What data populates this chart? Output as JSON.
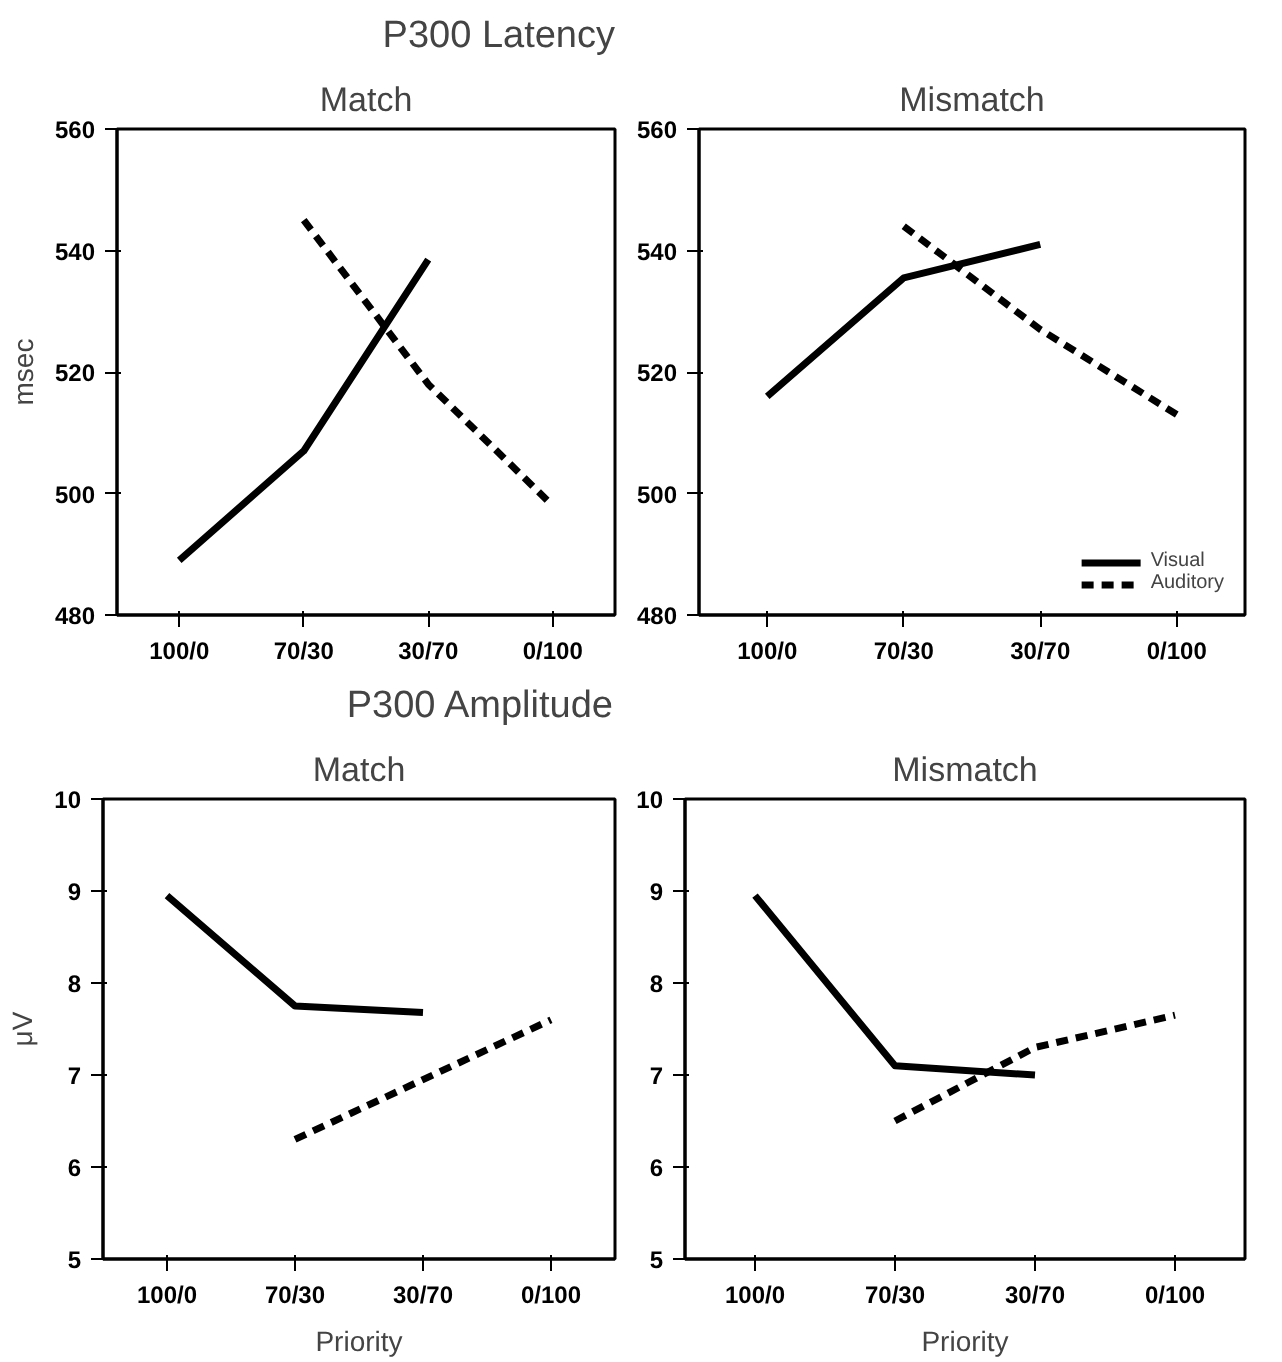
{
  "chart_data": [
    {
      "type": "line",
      "title": "P300 Latency",
      "subtitle": "Match",
      "ylabel": "msec",
      "categories": [
        "100/0",
        "70/30",
        "30/70",
        "0/100"
      ],
      "ylim": [
        480,
        560
      ],
      "yticks": [
        480,
        500,
        520,
        540,
        560
      ],
      "grid": false,
      "legend": false,
      "series": [
        {
          "color": "#000000",
          "line_style": "solid",
          "values": [
            489,
            507,
            538.5,
            null
          ]
        },
        {
          "color": "#000000",
          "line_style": "dashed",
          "values": [
            null,
            545,
            518,
            498
          ]
        }
      ]
    },
    {
      "type": "line",
      "subtitle": "Mismatch",
      "categories": [
        "100/0",
        "70/30",
        "30/70",
        "0/100"
      ],
      "ylim": [
        480,
        560
      ],
      "yticks": [
        480,
        500,
        520,
        540,
        560
      ],
      "grid": false,
      "legend": "bottom right",
      "series": [
        {
          "name": "Visual",
          "color": "#000000",
          "line_style": "solid",
          "values": [
            516,
            535.5,
            541,
            null
          ]
        },
        {
          "name": "Auditory",
          "color": "#000000",
          "line_style": "dashed",
          "values": [
            null,
            544,
            527,
            513
          ]
        }
      ]
    },
    {
      "type": "line",
      "title": "P300 Amplitude",
      "subtitle": "Match",
      "ylabel": "μV",
      "xlabel": "Priority",
      "categories": [
        "100/0",
        "70/30",
        "30/70",
        "0/100"
      ],
      "ylim": [
        5,
        10
      ],
      "yticks": [
        5,
        6,
        7,
        8,
        9,
        10
      ],
      "grid": false,
      "legend": false,
      "series": [
        {
          "color": "#000000",
          "line_style": "solid",
          "values": [
            8.95,
            7.75,
            7.68,
            null
          ]
        },
        {
          "color": "#000000",
          "line_style": "dashed",
          "values": [
            null,
            6.3,
            6.95,
            7.6
          ]
        }
      ]
    },
    {
      "type": "line",
      "subtitle": "Mismatch",
      "xlabel": "Priority",
      "categories": [
        "100/0",
        "70/30",
        "30/70",
        "0/100"
      ],
      "ylim": [
        5,
        10
      ],
      "yticks": [
        5,
        6,
        7,
        8,
        9,
        10
      ],
      "grid": false,
      "legend": false,
      "series": [
        {
          "color": "#000000",
          "line_style": "solid",
          "values": [
            8.95,
            7.1,
            7.0,
            null
          ]
        },
        {
          "color": "#000000",
          "line_style": "dashed",
          "values": [
            null,
            6.5,
            7.3,
            7.65
          ]
        }
      ]
    }
  ]
}
